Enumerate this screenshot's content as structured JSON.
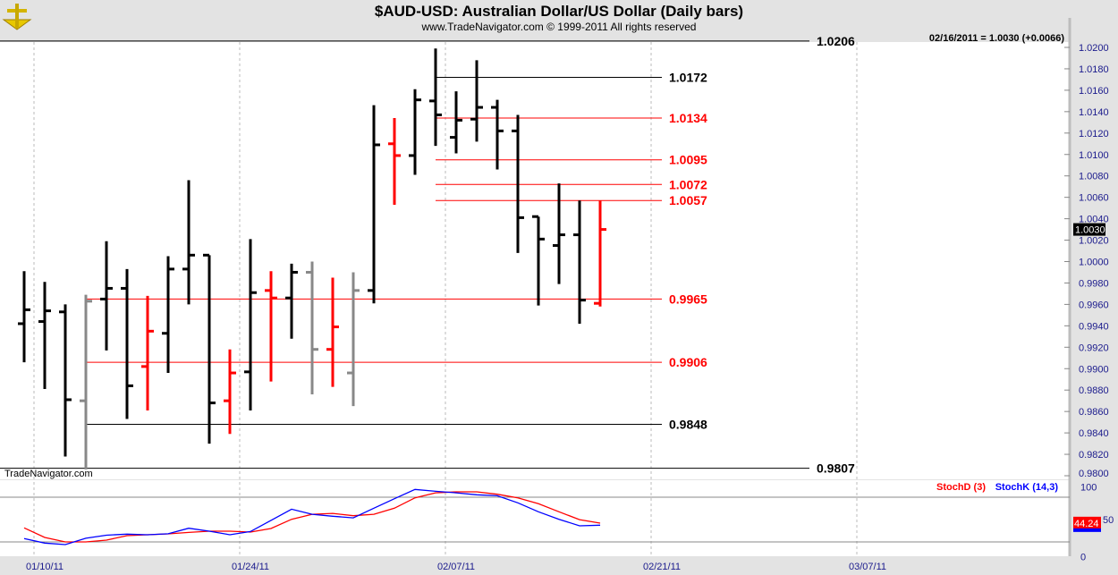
{
  "header": {
    "title": "$AUD-USD:  Australian Dollar/US Dollar  (Daily bars)",
    "subtitle": "www.TradeNavigator.com © 1999-2011 All rights reserved",
    "logo": "sextant-logo",
    "quote": "02/16/2011 = 1.0030 (+0.0066)",
    "watermark": "TradeNavigator.com"
  },
  "colors": {
    "up": "#000000",
    "red": "#ff0000",
    "gray": "#888888",
    "stochD": "#ff0000",
    "stochK": "#0000ff",
    "axis_text": "#1a1a8c"
  },
  "chart_data": [
    {
      "type": "ohlc",
      "ylim": [
        0.98,
        1.021
      ],
      "yticks": [
        "1.0200",
        "1.0180",
        "1.0160",
        "1.0140",
        "1.0120",
        "1.0100",
        "1.0080",
        "1.0060",
        "1.0040",
        "1.0020",
        "1.0000",
        "0.9980",
        "0.9960",
        "0.9940",
        "0.9920",
        "0.9900",
        "0.9880",
        "0.9860",
        "0.9840",
        "0.9820",
        "0.9800"
      ],
      "last_price_label": "1.0030",
      "xticks": [
        "01/10/11",
        "01/24/11",
        "02/07/11",
        "02/21/11",
        "03/07/11"
      ],
      "bars": [
        {
          "date": "01/07/11",
          "o": 0.9942,
          "h": 0.9991,
          "l": 0.9906,
          "c": 0.9955,
          "color": "black"
        },
        {
          "date": "01/10/11",
          "o": 0.9944,
          "h": 0.9981,
          "l": 0.9881,
          "c": 0.9954,
          "color": "black"
        },
        {
          "date": "01/11/11",
          "o": 0.9953,
          "h": 0.996,
          "l": 0.9818,
          "c": 0.9871,
          "color": "black"
        },
        {
          "date": "01/12/11",
          "o": 0.987,
          "h": 0.9969,
          "l": 0.9806,
          "c": 0.9963,
          "color": "gray"
        },
        {
          "date": "01/13/11",
          "o": 0.9965,
          "h": 1.0019,
          "l": 0.9917,
          "c": 0.9975,
          "color": "black"
        },
        {
          "date": "01/14/11",
          "o": 0.9975,
          "h": 0.9993,
          "l": 0.9853,
          "c": 0.9884,
          "color": "black"
        },
        {
          "date": "01/17/11",
          "o": 0.9902,
          "h": 0.9968,
          "l": 0.9861,
          "c": 0.9935,
          "color": "red"
        },
        {
          "date": "01/18/11",
          "o": 0.9933,
          "h": 1.0005,
          "l": 0.9896,
          "c": 0.9993,
          "color": "black"
        },
        {
          "date": "01/19/11",
          "o": 0.9993,
          "h": 1.0076,
          "l": 0.996,
          "c": 1.0006,
          "color": "black"
        },
        {
          "date": "01/20/11",
          "o": 1.0006,
          "h": 1.0006,
          "l": 0.983,
          "c": 0.9868,
          "color": "black"
        },
        {
          "date": "01/21/11",
          "o": 0.987,
          "h": 0.9918,
          "l": 0.9839,
          "c": 0.9896,
          "color": "red"
        },
        {
          "date": "01/24/11",
          "o": 0.9897,
          "h": 1.0021,
          "l": 0.9861,
          "c": 0.9971,
          "color": "black"
        },
        {
          "date": "01/25/11",
          "o": 0.9973,
          "h": 0.9991,
          "l": 0.9888,
          "c": 0.9966,
          "color": "red"
        },
        {
          "date": "01/26/11",
          "o": 0.9966,
          "h": 0.9998,
          "l": 0.9928,
          "c": 0.999,
          "color": "black"
        },
        {
          "date": "01/27/11",
          "o": 0.999,
          "h": 1.0,
          "l": 0.9876,
          "c": 0.9918,
          "color": "gray"
        },
        {
          "date": "01/28/11",
          "o": 0.9918,
          "h": 0.9985,
          "l": 0.9883,
          "c": 0.9939,
          "color": "red"
        },
        {
          "date": "01/31/11",
          "o": 0.9896,
          "h": 0.999,
          "l": 0.9865,
          "c": 0.9973,
          "color": "gray"
        },
        {
          "date": "02/01/11",
          "o": 0.9973,
          "h": 1.0146,
          "l": 0.9961,
          "c": 1.0109,
          "color": "black"
        },
        {
          "date": "02/02/11",
          "o": 1.011,
          "h": 1.0134,
          "l": 1.0053,
          "c": 1.0099,
          "color": "red"
        },
        {
          "date": "02/03/11",
          "o": 1.0099,
          "h": 1.0161,
          "l": 1.0081,
          "c": 1.0151,
          "color": "black"
        },
        {
          "date": "02/04/11",
          "o": 1.015,
          "h": 1.0199,
          "l": 1.0108,
          "c": 1.0137,
          "color": "black"
        },
        {
          "date": "02/07/11",
          "o": 1.0116,
          "h": 1.0159,
          "l": 1.0101,
          "c": 1.0132,
          "color": "black"
        },
        {
          "date": "02/08/11",
          "o": 1.0133,
          "h": 1.0188,
          "l": 1.0112,
          "c": 1.0144,
          "color": "black"
        },
        {
          "date": "02/09/11",
          "o": 1.0144,
          "h": 1.0151,
          "l": 1.0086,
          "c": 1.0122,
          "color": "black"
        },
        {
          "date": "02/10/11",
          "o": 1.0122,
          "h": 1.0137,
          "l": 1.0008,
          "c": 1.0041,
          "color": "black"
        },
        {
          "date": "02/11/11",
          "o": 1.0042,
          "h": 1.0042,
          "l": 0.9959,
          "c": 1.0021,
          "color": "black"
        },
        {
          "date": "02/14/11",
          "o": 1.0015,
          "h": 1.0073,
          "l": 0.9979,
          "c": 1.0025,
          "color": "black"
        },
        {
          "date": "02/15/11",
          "o": 1.0025,
          "h": 1.0057,
          "l": 0.9942,
          "c": 0.9964,
          "color": "black"
        },
        {
          "date": "02/16/11",
          "o": 0.9961,
          "h": 1.0057,
          "l": 0.9958,
          "c": 1.003,
          "color": "red"
        }
      ],
      "levels": [
        {
          "label": "1.0206",
          "value": 1.0206,
          "color": "black",
          "from": "start"
        },
        {
          "label": "1.0172",
          "value": 1.0172,
          "color": "black",
          "from": "02/04/11"
        },
        {
          "label": "1.0134",
          "value": 1.0134,
          "color": "red",
          "from": "02/04/11"
        },
        {
          "label": "1.0095",
          "value": 1.0095,
          "color": "red",
          "from": "02/04/11"
        },
        {
          "label": "1.0072",
          "value": 1.0072,
          "color": "red",
          "from": "02/04/11"
        },
        {
          "label": "1.0057",
          "value": 1.0057,
          "color": "red",
          "from": "02/04/11"
        },
        {
          "label": "0.9965",
          "value": 0.9965,
          "color": "red",
          "from": "01/12/11"
        },
        {
          "label": "0.9906",
          "value": 0.9906,
          "color": "red",
          "from": "01/12/11"
        },
        {
          "label": "0.9848",
          "value": 0.9848,
          "color": "black",
          "from": "01/12/11"
        },
        {
          "label": "0.9807",
          "value": 0.9807,
          "color": "black",
          "from": "start"
        }
      ]
    },
    {
      "type": "line",
      "ylim": [
        0,
        100
      ],
      "yticks": [
        "100",
        "50",
        "0"
      ],
      "reference_lines": [
        80,
        20
      ],
      "last_value_label": "44.24",
      "series": [
        {
          "name": "StochD (3)",
          "color": "#ff0000",
          "values": [
            38.9,
            26,
            20,
            20,
            22.4,
            28.4,
            29.6,
            30.8,
            32.8,
            34.4,
            34.4,
            33.2,
            38,
            50.4,
            57.2,
            58.4,
            55.2,
            57.2,
            65.3,
            79.2,
            86,
            87.3,
            87.3,
            84,
            79.2,
            71.3,
            60.5,
            50,
            45.3
          ]
        },
        {
          "name": "StochK (14,3)",
          "color": "#0000ff",
          "values": [
            24.5,
            18.5,
            16.4,
            25,
            29,
            30.5,
            29.6,
            31,
            38.4,
            34.4,
            29.6,
            34,
            49,
            64,
            57.2,
            54.5,
            52.4,
            65.3,
            78,
            90.5,
            88,
            86,
            83.3,
            82,
            72.5,
            60.5,
            50.4,
            41.7,
            42.5
          ]
        }
      ]
    }
  ]
}
